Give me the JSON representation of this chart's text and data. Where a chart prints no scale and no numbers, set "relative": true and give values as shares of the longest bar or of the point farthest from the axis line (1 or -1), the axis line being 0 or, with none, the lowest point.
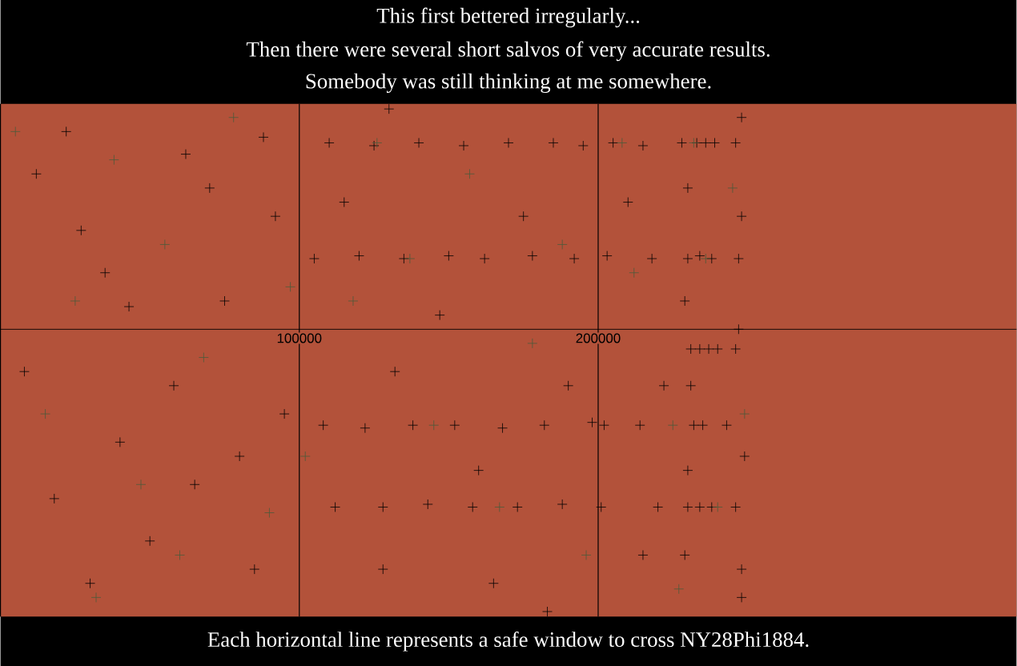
{
  "chart_data": {
    "type": "scatter",
    "title": "This first bettered irregularly...",
    "subtitle": "Then there were several short salvos of very accurate results.",
    "annotations": [
      "Somebody was still thinking at me somewhere.",
      "Each horizontal line represents a safe window to cross NY28Phi1884."
    ],
    "relative": true,
    "xlim": [
      0,
      340000
    ],
    "xticks": [
      100000,
      200000
    ],
    "grid": "x",
    "tick_labels": "x",
    "marker": "cross",
    "series": [
      {
        "color": "#000000",
        "x": [
          12000,
          35000,
          43000,
          58000,
          70000,
          80000,
          88000,
          95000,
          18000,
          27000,
          50000,
          62000,
          75000,
          85000,
          40000,
          22000,
          8000,
          65000,
          92000,
          30000,
          110000,
          125000,
          140000,
          155000,
          170000,
          185000,
          195000,
          105000,
          120000,
          135000,
          150000,
          162000,
          178000,
          192000,
          108000,
          122000,
          138000,
          152000,
          168000,
          182000,
          198000,
          112000,
          128000,
          143000,
          158000,
          173000,
          188000,
          115000,
          132000,
          147000,
          160000,
          175000,
          190000,
          128000,
          165000,
          183000,
          130000,
          205000,
          215000,
          228000,
          233000,
          236000,
          239000,
          246000,
          203000,
          218000,
          230000,
          234000,
          238000,
          247000,
          231000,
          234000,
          237000,
          240000,
          246000,
          202000,
          214000,
          232000,
          235000,
          243000,
          201000,
          220000,
          230000,
          234000,
          238000,
          246000,
          230000,
          229000,
          231000,
          230000,
          229000,
          248000,
          248000,
          247000,
          249000,
          248000,
          248000,
          210000,
          222000,
          215000
        ],
        "values": [
          0.55,
          0.2,
          0.08,
          -0.2,
          0.5,
          -0.45,
          0.68,
          -0.3,
          -0.6,
          0.35,
          -0.75,
          0.62,
          0.1,
          -0.85,
          -0.4,
          0.7,
          -0.15,
          -0.55,
          0.4,
          -0.9,
          0.66,
          0.65,
          0.66,
          0.65,
          0.66,
          0.66,
          0.65,
          0.25,
          0.26,
          0.25,
          0.26,
          0.25,
          0.26,
          0.25,
          -0.34,
          -0.35,
          -0.34,
          -0.34,
          -0.35,
          -0.34,
          -0.33,
          -0.63,
          -0.63,
          -0.62,
          -0.63,
          -0.63,
          -0.62,
          0.45,
          -0.15,
          0.05,
          -0.5,
          0.4,
          -0.2,
          -0.85,
          -0.9,
          -1,
          0.78,
          0.66,
          0.65,
          0.66,
          0.66,
          0.66,
          0.66,
          0.66,
          0.26,
          0.25,
          0.25,
          0.26,
          0.25,
          0.25,
          -0.07,
          -0.07,
          -0.07,
          -0.07,
          -0.07,
          -0.34,
          -0.34,
          -0.34,
          -0.34,
          -0.34,
          -0.63,
          -0.63,
          -0.63,
          -0.63,
          -0.63,
          -0.63,
          0.5,
          0.1,
          -0.2,
          -0.5,
          -0.8,
          0.75,
          0.4,
          0.0,
          -0.45,
          -0.85,
          -0.95,
          0.45,
          -0.2,
          -0.8
        ]
      },
      {
        "color": "#4b5b3b",
        "x": [
          5000,
          15000,
          25000,
          38000,
          47000,
          55000,
          68000,
          78000,
          90000,
          97000,
          32000,
          60000,
          102000,
          118000,
          126000,
          137000,
          145000,
          157000,
          167000,
          178000,
          188000,
          196000,
          208000,
          212000,
          225000,
          232000,
          236000,
          240000,
          245000,
          249000,
          227000
        ],
        "values": [
          0.7,
          -0.3,
          0.1,
          0.6,
          -0.55,
          0.3,
          -0.1,
          0.75,
          -0.65,
          0.15,
          -0.95,
          -0.8,
          -0.45,
          0.1,
          0.66,
          0.25,
          -0.34,
          0.55,
          -0.63,
          -0.05,
          0.3,
          -0.8,
          0.66,
          0.2,
          -0.34,
          0.66,
          0.25,
          -0.63,
          0.5,
          -0.3,
          -0.92
        ]
      }
    ]
  }
}
